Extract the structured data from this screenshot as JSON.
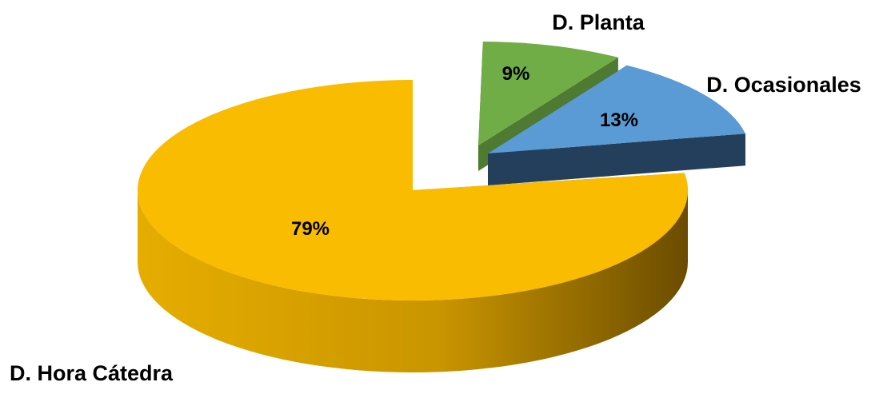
{
  "chart_data": {
    "type": "pie",
    "style": "3d-exploded",
    "title": "",
    "slices": [
      {
        "label": "D. Planta",
        "value": 9,
        "display": "9%",
        "color": "#70ad47",
        "side_color": "#4e7a31"
      },
      {
        "label": "D. Ocasionales",
        "value": 13,
        "display": "13%",
        "color": "#5b9bd5",
        "side_color": "#243f5c"
      },
      {
        "label": "D. Hora Cátedra",
        "value": 79,
        "display": "79%",
        "color": "#f9bc00",
        "side_color": "#a87800"
      }
    ],
    "legend": "none",
    "data_labels": "inside"
  }
}
